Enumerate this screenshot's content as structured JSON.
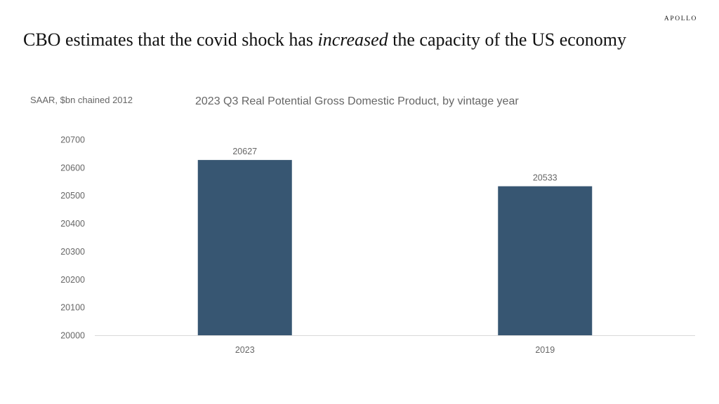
{
  "brand": "APOLLO",
  "headline": {
    "before": "CBO estimates that the covid shock has ",
    "emphasis": "increased",
    "after": " the capacity of  the US economy"
  },
  "chart_data": {
    "type": "bar",
    "title": "2023 Q3 Real Potential Gross Domestic Product, by vintage year",
    "unit_label": "SAAR, $bn chained 2012",
    "categories": [
      "2023",
      "2019"
    ],
    "values": [
      20627,
      20533
    ],
    "data_labels": [
      "20627",
      "20533"
    ],
    "ylim": [
      20000,
      20700
    ],
    "yticks": [
      20000,
      20100,
      20200,
      20300,
      20400,
      20500,
      20600,
      20700
    ],
    "bar_color": "#375672",
    "label_color": "#666666",
    "grid": false,
    "legend": false
  }
}
